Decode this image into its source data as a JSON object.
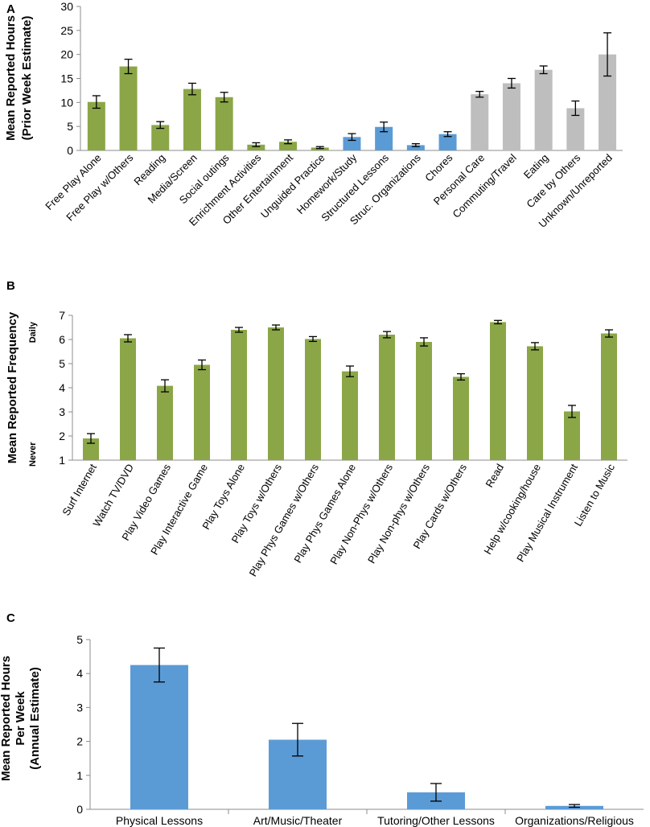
{
  "colors": {
    "green": "#8BA647",
    "blue": "#5B9BD5",
    "grey": "#BEBEBE",
    "axis": "#8C8C8C",
    "error": "#000000"
  },
  "chart_data": [
    {
      "panel": "A",
      "type": "bar",
      "ylabel_lines": [
        "Mean Reported Hours",
        "(Prior Week Estimate)"
      ],
      "ylim": [
        0,
        30
      ],
      "yticks": [
        0,
        5,
        10,
        15,
        20,
        25,
        30
      ],
      "categories": [
        "Free Play Alone",
        "Free Play w/Others",
        "Reading",
        "Media/Screen",
        "Social outings",
        "Enrichment Activities",
        "Other Entertainment",
        "Unguided Practice",
        "Homework/Study",
        "Structured Lessons",
        "Struc. Organizations",
        "Chores",
        "Personal Care",
        "Commuting/Travel",
        "Eating",
        "Care by Others",
        "Unknown/Unreported"
      ],
      "values": [
        10.1,
        17.5,
        5.3,
        12.8,
        11.1,
        1.2,
        1.8,
        0.6,
        2.8,
        4.9,
        1.1,
        3.4,
        11.7,
        14.0,
        16.8,
        8.8,
        20.0
      ],
      "errors": [
        1.3,
        1.5,
        0.7,
        1.2,
        1.0,
        0.4,
        0.4,
        0.2,
        0.7,
        1.0,
        0.3,
        0.5,
        0.6,
        1.0,
        0.8,
        1.5,
        4.5
      ],
      "color_keys": [
        "green",
        "green",
        "green",
        "green",
        "green",
        "green",
        "green",
        "green",
        "blue",
        "blue",
        "blue",
        "blue",
        "grey",
        "grey",
        "grey",
        "grey",
        "grey"
      ]
    },
    {
      "panel": "B",
      "type": "bar",
      "ylabel_lines": [
        "Mean Reported Frequency"
      ],
      "ylabel_top": "Daily",
      "ylabel_bottom": "Never",
      "ylim": [
        1,
        7
      ],
      "yticks": [
        1,
        2,
        3,
        4,
        5,
        6,
        7
      ],
      "categories": [
        "Surf Internet",
        "Watch TV/DVD",
        "Play Video Games",
        "Play Interactive Game",
        "Play Toys Alone",
        "Play Toys w/Others",
        "Play Phys Games w/Others",
        "Play Phys Games Alone",
        "Play Non-Phys w/Others",
        "Play Non-phys w/Others",
        "Play Cards w/Others",
        "Read",
        "Help w/cooking/house",
        "Play Musical Instrument",
        "Listen to Music"
      ],
      "values": [
        1.9,
        6.05,
        4.08,
        4.95,
        6.4,
        6.5,
        6.02,
        4.68,
        6.2,
        5.9,
        4.45,
        6.72,
        5.72,
        3.02,
        6.25
      ],
      "errors": [
        0.2,
        0.15,
        0.25,
        0.2,
        0.1,
        0.1,
        0.1,
        0.22,
        0.13,
        0.17,
        0.13,
        0.07,
        0.15,
        0.25,
        0.15
      ],
      "color_keys": [
        "green",
        "green",
        "green",
        "green",
        "green",
        "green",
        "green",
        "green",
        "green",
        "green",
        "green",
        "green",
        "green",
        "green",
        "green"
      ]
    },
    {
      "panel": "C",
      "type": "bar",
      "ylabel_lines": [
        "Mean Reported Hours",
        "Per Week",
        "(Annual Estimate)"
      ],
      "ylim": [
        0,
        5
      ],
      "yticks": [
        0,
        1,
        2,
        3,
        4,
        5
      ],
      "categories": [
        "Physical Lessons",
        "Art/Music/Theater",
        "Tutoring/Other Lessons",
        "Organizations/Religious"
      ],
      "values": [
        4.25,
        2.05,
        0.5,
        0.1
      ],
      "errors": [
        0.5,
        0.48,
        0.26,
        0.04
      ],
      "color_keys": [
        "blue",
        "blue",
        "blue",
        "blue"
      ]
    }
  ]
}
